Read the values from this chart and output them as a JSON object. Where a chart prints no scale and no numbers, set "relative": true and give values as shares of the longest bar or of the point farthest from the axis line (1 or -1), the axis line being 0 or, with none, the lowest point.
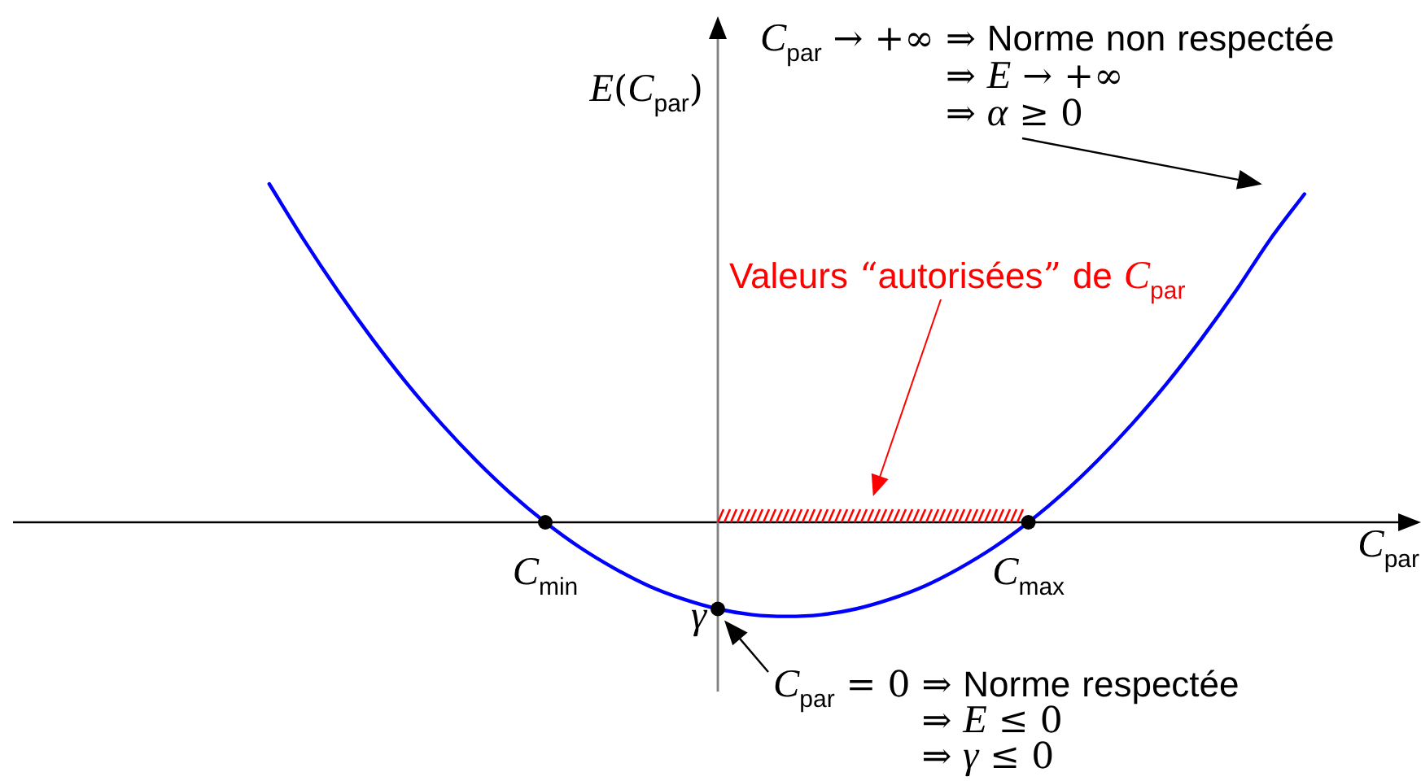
{
  "chart_data": {
    "type": "line",
    "relative": true,
    "xlabel": "C$_{par}$",
    "ylabel": "E(C$_{par}$)",
    "tick_labels": "x",
    "categories": [
      null,
      null,
      null,
      null,
      null,
      null,
      null,
      null,
      null,
      null,
      null,
      null,
      null,
      null,
      null,
      "C$_{min}$",
      null,
      null,
      null,
      null,
      null,
      null,
      null,
      null,
      null,
      null,
      null,
      null,
      null,
      "C$_{max}$",
      null,
      null,
      null,
      null,
      null,
      null,
      null,
      null,
      null,
      null,
      null
    ],
    "series": [
      {
        "color": "#0000ff",
        "values": [
          null,
          null,
          null,
          null,
          null,
          null,
          null,
          1,
          0.835,
          0.682,
          0.54,
          0.409,
          0.29,
          0.182,
          0.085,
          0,
          -0.074,
          -0.136,
          -0.188,
          -0.227,
          -0.256,
          -0.273,
          -0.278,
          -0.273,
          -0.256,
          -0.227,
          -0.188,
          -0.136,
          -0.074,
          0,
          0.085,
          0.182,
          0.29,
          0.409,
          0.54,
          0.682,
          0.835,
          0.97,
          null,
          null,
          null
        ]
      },
      {
        "type": "scatter",
        "color": "#000000",
        "marker": "circle",
        "x": [
          "C$_{min}$",
          "C$_{max}$"
        ],
        "values": [
          0,
          0
        ]
      }
    ],
    "annotations": [
      "C$_{par}$ → +∞ ⇒ Norme non respectée\n⇒ E → +∞\n⇒ α ≥ 0",
      {
        "text": "γ",
        "y": -0.256
      },
      "Valeurs “autorisées” de C$_{par}$",
      "C$_{par}$ = 0 ⇒ Norme respectée\n⇒ E ≤ 0\n⇒ γ ≤ 0"
    ]
  }
}
